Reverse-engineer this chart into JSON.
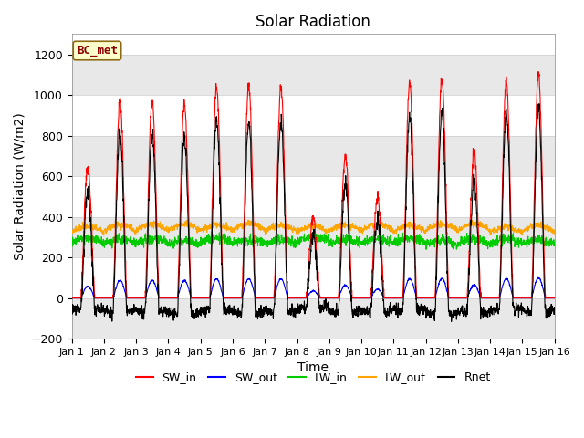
{
  "title": "Solar Radiation",
  "xlabel": "Time",
  "ylabel": "Solar Radiation (W/m2)",
  "ylim": [
    -200,
    1300
  ],
  "yticks": [
    -200,
    0,
    200,
    400,
    600,
    800,
    1000,
    1200
  ],
  "days": 15,
  "points_per_day": 144,
  "colors": {
    "SW_in": "#FF0000",
    "SW_out": "#0000FF",
    "LW_in": "#00CC00",
    "LW_out": "#FFA500",
    "Rnet": "#000000"
  },
  "legend_label": "BC_met",
  "background_color": "#FFFFFF",
  "plot_bg_color": "#FFFFFF",
  "title_fontsize": 12,
  "axis_fontsize": 10,
  "tick_fontsize": 9,
  "day_peaks_SW_in": [
    650,
    970,
    970,
    960,
    1050,
    1050,
    1040,
    390,
    700,
    490,
    1060,
    1080,
    730,
    1070,
    1100
  ],
  "LW_in_base": 270,
  "LW_out_base": 330
}
